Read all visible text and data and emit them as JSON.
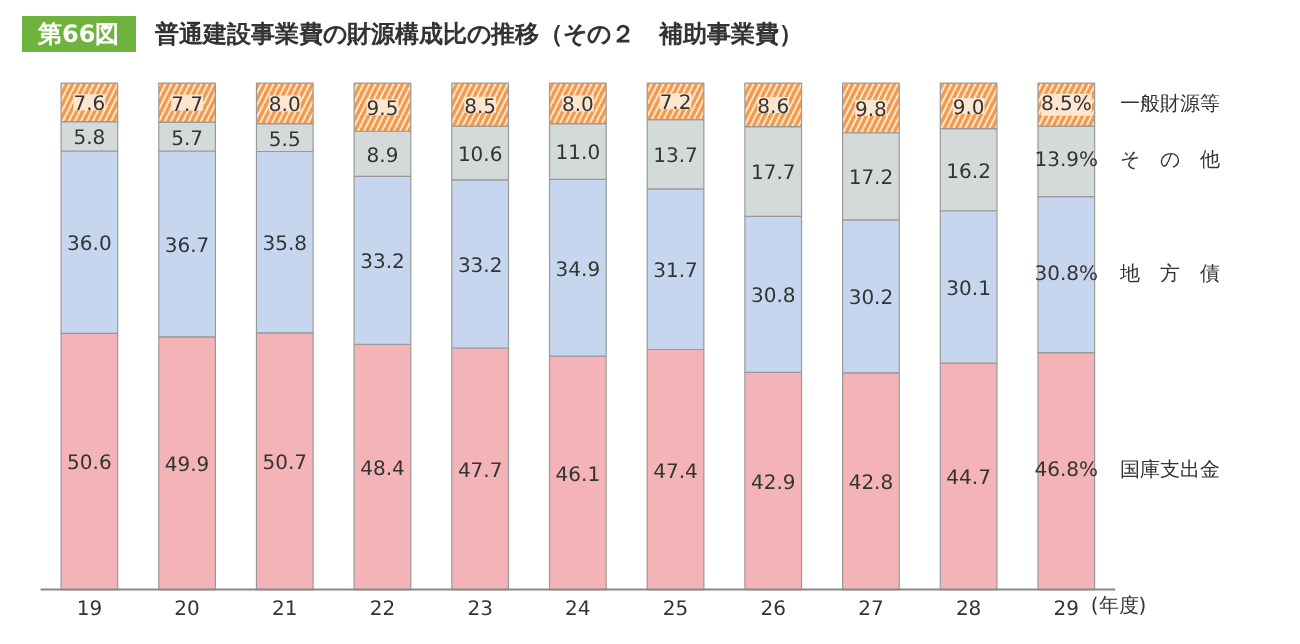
{
  "chart_data": {
    "type": "bar",
    "stacked": true,
    "title": "普通建設事業費の財源構成比の推移（その２　補助事業費）",
    "annotations": [
      "第66図"
    ],
    "xlabel": "(年度)",
    "categories": [
      "19",
      "20",
      "21",
      "22",
      "23",
      "24",
      "25",
      "26",
      "27",
      "28",
      "29"
    ],
    "series": [
      {
        "name": "国庫支出金",
        "color": "#f4b3b6",
        "values": [
          50.6,
          49.9,
          50.7,
          48.4,
          47.7,
          46.1,
          47.4,
          42.9,
          42.8,
          44.7,
          46.8
        ],
        "value_labels": [
          "50.6",
          "49.9",
          "50.7",
          "48.4",
          "47.7",
          "46.1",
          "47.4",
          "42.9",
          "42.8",
          "44.7",
          "46.8%"
        ]
      },
      {
        "name": "地　方　債",
        "color": "#c6d6ef",
        "values": [
          36.0,
          36.7,
          35.8,
          33.2,
          33.2,
          34.9,
          31.7,
          30.8,
          30.2,
          30.1,
          30.8
        ],
        "value_labels": [
          "36.0",
          "36.7",
          "35.8",
          "33.2",
          "33.2",
          "34.9",
          "31.7",
          "30.8",
          "30.2",
          "30.1",
          "30.8%"
        ]
      },
      {
        "name": "そ　の　他",
        "color": "#d4d9d9",
        "values": [
          5.8,
          5.7,
          5.5,
          8.9,
          10.6,
          11.0,
          13.7,
          17.7,
          17.2,
          16.2,
          13.9
        ],
        "value_labels": [
          "5.8",
          "5.7",
          "5.5",
          "8.9",
          "10.6",
          "11.0",
          "13.7",
          "17.7",
          "17.2",
          "16.2",
          "13.9%"
        ]
      },
      {
        "name": "一般財源等",
        "color": "#f29a4e",
        "values": [
          7.6,
          7.7,
          8.0,
          9.5,
          8.5,
          8.0,
          7.2,
          8.6,
          9.8,
          9.0,
          8.5
        ],
        "value_labels": [
          "7.6",
          "7.7",
          "8.0",
          "9.5",
          "8.5",
          "8.0",
          "7.2",
          "8.6",
          "9.8",
          "9.0",
          "8.5%"
        ]
      }
    ]
  }
}
